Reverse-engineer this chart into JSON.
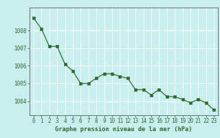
{
  "hours": [
    0,
    1,
    2,
    3,
    4,
    5,
    6,
    7,
    8,
    9,
    10,
    11,
    12,
    13,
    14,
    15,
    16,
    17,
    18,
    19,
    20,
    21,
    22,
    23
  ],
  "pressure": [
    1008.7,
    1008.1,
    1007.1,
    1007.1,
    1006.1,
    1005.7,
    1005.0,
    1005.0,
    1005.3,
    1005.55,
    1005.55,
    1005.4,
    1005.3,
    1004.65,
    1004.65,
    1004.35,
    1004.65,
    1004.25,
    1004.25,
    1004.1,
    1003.9,
    1004.1,
    1003.9,
    1003.5
  ],
  "line_color": "#2d6a2d",
  "marker_color": "#2d6a2d",
  "bg_color": "#c8eef0",
  "grid_color": "#ffffff",
  "ylabel_values": [
    1004,
    1005,
    1006,
    1007,
    1008
  ],
  "xlabel_label": "Graphe pression niveau de la mer (hPa)",
  "xlabel_color": "#2d6a2d",
  "ylim": [
    1003.2,
    1009.3
  ],
  "xlim": [
    -0.5,
    23.5
  ],
  "tick_label_color": "#2d6a2d",
  "axis_color": "#5a5a5a",
  "tick_fontsize": 5.5,
  "xlabel_fontsize": 6.2,
  "linewidth": 0.9,
  "markersize": 2.2
}
